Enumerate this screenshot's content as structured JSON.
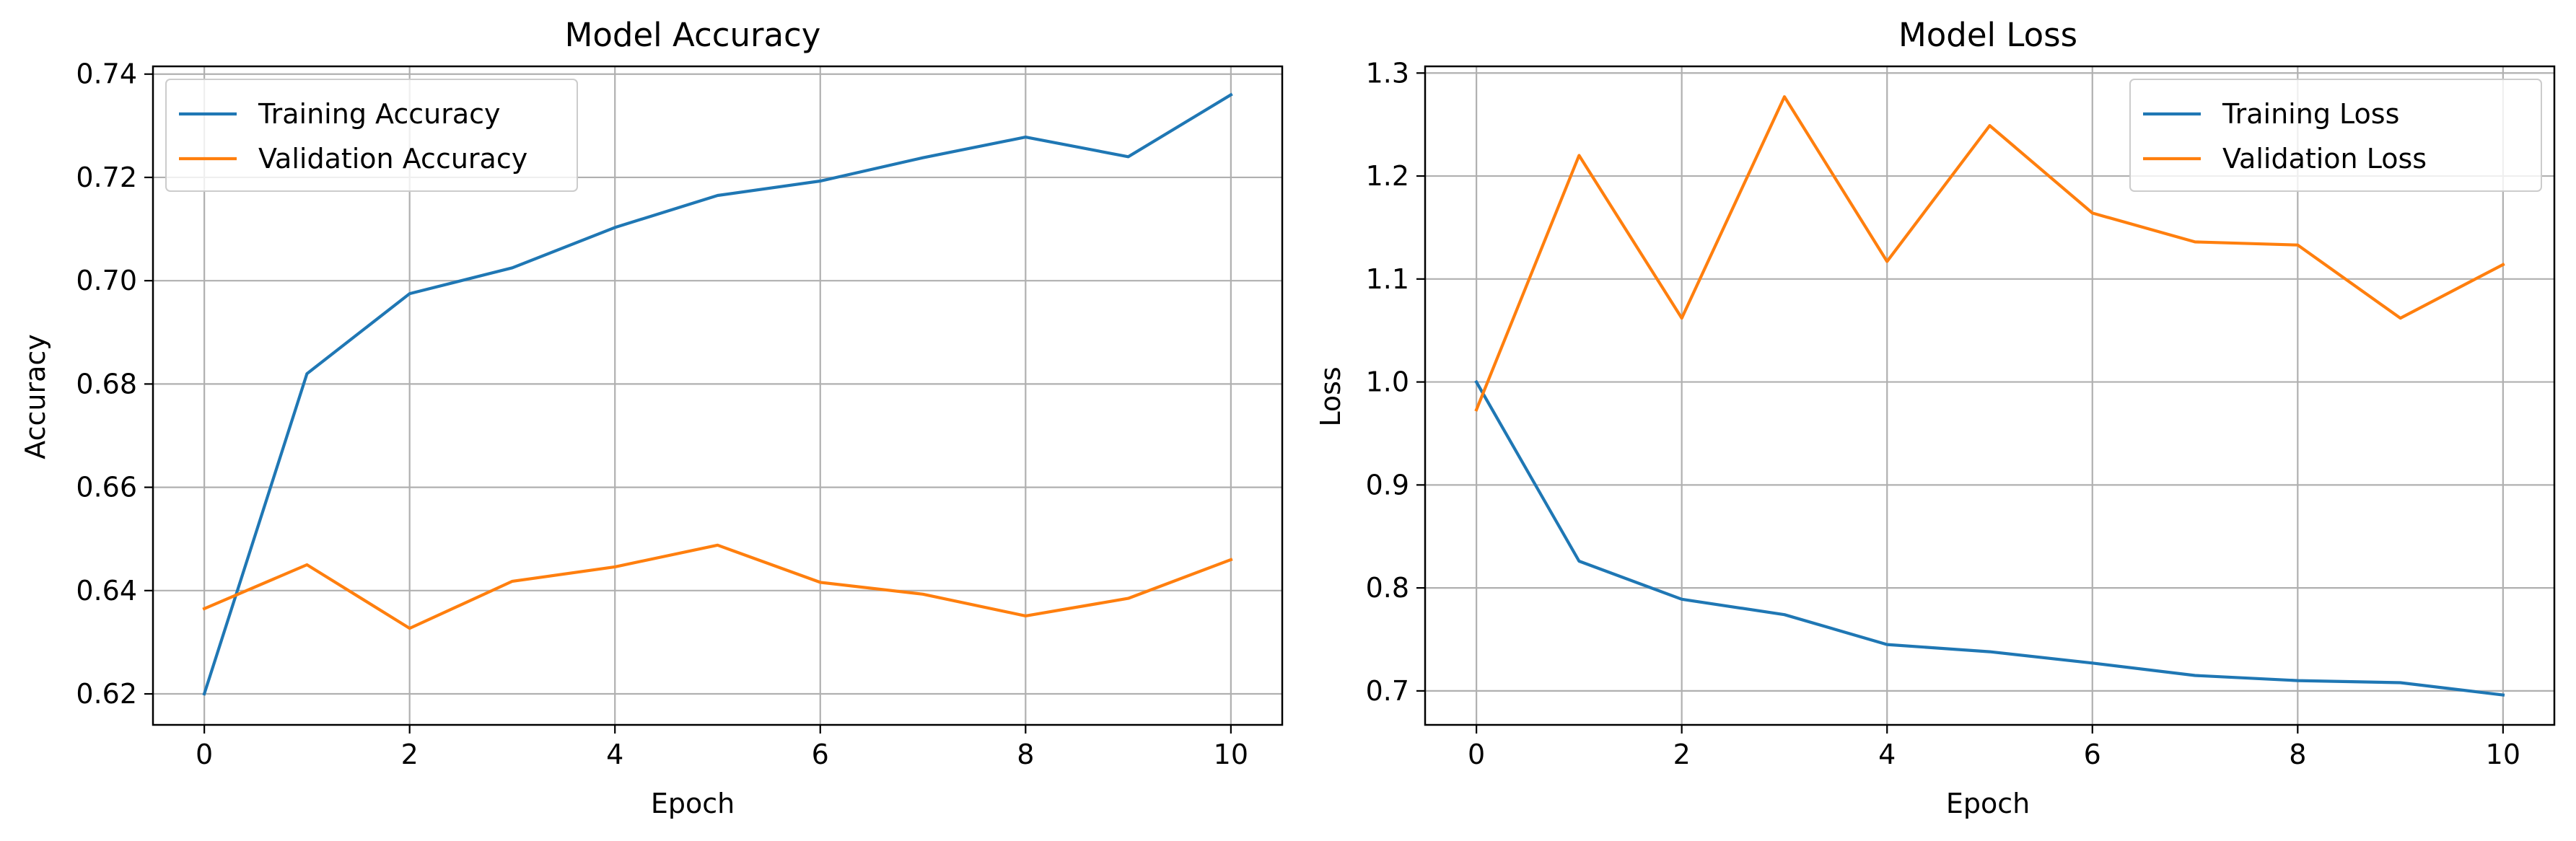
{
  "chart_data": [
    {
      "type": "line",
      "title": "Model Accuracy",
      "xlabel": "Epoch",
      "ylabel": "Accuracy",
      "xlim": [
        -0.5,
        10.5
      ],
      "ylim": [
        0.614,
        0.7415
      ],
      "xticks": [
        0,
        2,
        4,
        6,
        8,
        10
      ],
      "yticks": [
        0.62,
        0.64,
        0.66,
        0.68,
        0.7,
        0.72,
        0.74
      ],
      "ytick_decimals": 2,
      "grid": true,
      "legend_position": "upper-left",
      "x": [
        0,
        1,
        2,
        3,
        4,
        5,
        6,
        7,
        8,
        9,
        10
      ],
      "series": [
        {
          "name": "Training Accuracy",
          "color": "#1f77b4",
          "values": [
            0.62,
            0.682,
            0.6975,
            0.7025,
            0.7103,
            0.7165,
            0.7193,
            0.7238,
            0.7278,
            0.724,
            0.736
          ]
        },
        {
          "name": "Validation Accuracy",
          "color": "#ff7f0e",
          "values": [
            0.6365,
            0.645,
            0.6327,
            0.6418,
            0.6446,
            0.6488,
            0.6416,
            0.6393,
            0.6351,
            0.6385,
            0.646
          ]
        }
      ]
    },
    {
      "type": "line",
      "title": "Model Loss",
      "xlabel": "Epoch",
      "ylabel": "Loss",
      "xlim": [
        -0.5,
        10.5
      ],
      "ylim": [
        0.667,
        1.3065
      ],
      "xticks": [
        0,
        2,
        4,
        6,
        8,
        10
      ],
      "yticks": [
        0.7,
        0.8,
        0.9,
        1.0,
        1.1,
        1.2,
        1.3
      ],
      "ytick_decimals": 1,
      "grid": true,
      "legend_position": "upper-right",
      "x": [
        0,
        1,
        2,
        3,
        4,
        5,
        6,
        7,
        8,
        9,
        10
      ],
      "series": [
        {
          "name": "Training Loss",
          "color": "#1f77b4",
          "values": [
            1.0,
            0.826,
            0.789,
            0.774,
            0.745,
            0.738,
            0.727,
            0.715,
            0.71,
            0.708,
            0.696
          ]
        },
        {
          "name": "Validation Loss",
          "color": "#ff7f0e",
          "values": [
            0.973,
            1.22,
            1.062,
            1.277,
            1.117,
            1.249,
            1.164,
            1.136,
            1.133,
            1.062,
            1.114
          ]
        }
      ]
    }
  ]
}
